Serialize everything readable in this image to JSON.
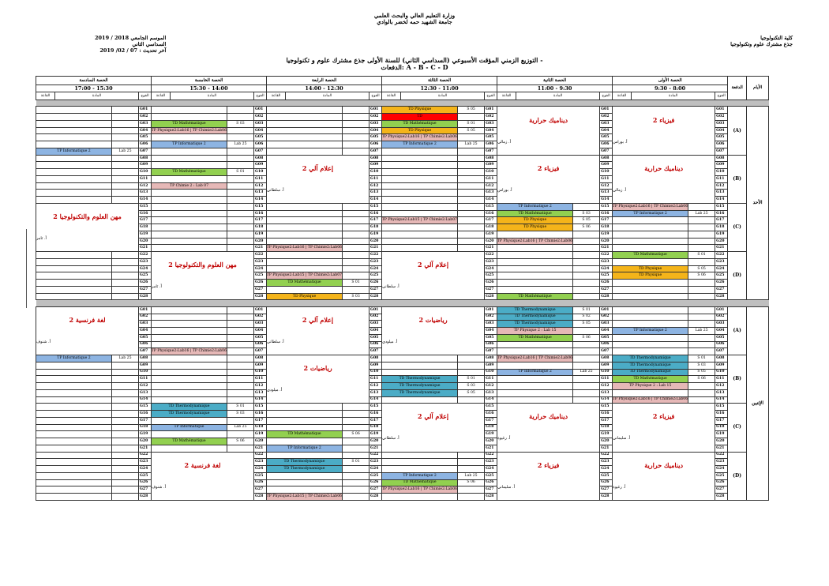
{
  "header": {
    "ministry": "وزارة التعليم العالي والبحث العلمي",
    "university": "جامعة الشهيد حمه لخضر بالوادي",
    "faculty": "كلية التكنولوجيا",
    "department": "جذع مشترك علوم وتكنولوجيا",
    "year": "الموسم الجامعي 2018 / 2019",
    "semester": "السداسي الثاني",
    "updated": "آخر تحديث : 07 / 02/ 2019",
    "title": "التوزيع الزمني المؤقت الأسبوعي (السداسي الثاني) للسنة الأولى جذع مشترك علوم و تكنولوجيا -",
    "batches": "الدفعات: A - B - C - D"
  },
  "labels": {
    "days_col": "الأيام",
    "batch_col": "الدفعة",
    "group": "الفوج",
    "subject": "المادة",
    "room": "القاعة",
    "amphi": "المدرج"
  },
  "periods": [
    {
      "name": "الحصة الأولى",
      "time": "8:00 - 9:30"
    },
    {
      "name": "الحصة الثانية",
      "time": "9:30 - 11:00"
    },
    {
      "name": "الحصة الثالثة",
      "time": "11:00 - 12:30"
    },
    {
      "name": "الحصة الرابعة",
      "time": "12:30 - 14:00"
    },
    {
      "name": "الحصة الخامسة",
      "time": "14:00 - 15:30"
    },
    {
      "name": "الحصة السادسة",
      "time": "15:30 - 17:00"
    }
  ],
  "days": [
    {
      "name": "الأحد",
      "batches": [
        "(A)",
        "(B)",
        "(C)",
        "(D)"
      ],
      "lectures": [
        {
          "p": 1,
          "r0": 0,
          "span": 7,
          "s": "فيزياء 2",
          "t": "أ. بوراس"
        },
        {
          "p": 2,
          "r0": 0,
          "span": 7,
          "s": "ديناميك حرارية",
          "t": "أ. زمالي"
        },
        {
          "p": 1,
          "r0": 7,
          "span": 7,
          "s": "ديناميك حرارية",
          "t": "أ. زمالي"
        },
        {
          "p": 2,
          "r0": 7,
          "span": 7,
          "s": "فيزياء 2",
          "t": "أ. بوراس"
        },
        {
          "p": 4,
          "r0": 7,
          "span": 7,
          "s": "إعلام آلي 2",
          "t": "أ. سلطاني"
        },
        {
          "p": 6,
          "r0": 14,
          "span": 7,
          "s": "مهن العلوم والتكنولوجيا 2",
          "t": "أ. ثامر"
        },
        {
          "p": 3,
          "r0": 21,
          "span": 7,
          "s": "إعلام آلي 2",
          "t": "أ. سلطاني"
        },
        {
          "p": 5,
          "r0": 21,
          "span": 7,
          "s": "مهن العلوم والتكنولوجيا 2",
          "t": "أ. ثامر"
        }
      ],
      "rows": [
        {
          "3": [
            "S 05",
            "TD Physique",
            "or"
          ]
        },
        {
          "3": [
            "",
            "TD",
            "rd"
          ]
        },
        {
          "3": [
            "S 01",
            "TD Mathématique",
            "gr"
          ],
          "5": [
            "S 03",
            "TD Mathématique",
            "gr"
          ]
        },
        {
          "3": [
            "S 05",
            "TD Physique",
            "or"
          ],
          "5": [
            "",
            "TP Physique2:Lab16 | TP Chimie2:Lab06",
            "pk"
          ]
        },
        {
          "3": [
            "",
            "TP Physique2:Lab16 | TP Chimie2:Lab06",
            "pk"
          ]
        },
        {
          "3": [
            "Lab 25",
            "TP Informatique 2",
            "bl"
          ],
          "5": [
            "Lab 25",
            "TP Informatique 2",
            "bl"
          ]
        },
        {
          "6": [
            "Lab 25",
            "TP Informatique 2",
            "bl"
          ]
        },
        {},
        {},
        {
          "5": [
            "S 01",
            "TD Mathématique",
            "gr"
          ]
        },
        {},
        {
          "5": [
            "",
            "TP Chimie 2 : Lab 07",
            "pk"
          ]
        },
        {},
        {},
        {
          "1": [
            "",
            "TP Physique2:Lab16 | TP Chimie2:Lab06",
            "pk"
          ],
          "2": [
            "",
            "TP Informatique 2",
            "bl"
          ]
        },
        {
          "1": [
            "Lab 25",
            "TP Informatique 2",
            "bl"
          ],
          "2": [
            "S 03",
            "TD Mathématique",
            "gr"
          ]
        },
        {
          "2": [
            "S 05",
            "TD Physique",
            "or"
          ],
          "3": [
            "",
            "TP Physique2:Lab15 | TP Chimie2:Lab07",
            "pk"
          ]
        },
        {
          "2": [
            "S 06",
            "TD Physique",
            "or"
          ]
        },
        {},
        {
          "2": [
            "",
            "TP Physique2:Lab16 | TP Chimie2:Lab06",
            "pk"
          ]
        },
        {
          "4": [
            "",
            "TP Physique2:Lab16 | TP Chimie2:Lab06",
            "pk"
          ]
        },
        {
          "1": [
            "S 01",
            "TD Mathématique",
            "gr"
          ]
        },
        {},
        {
          "1": [
            "S 05",
            "TD Physique",
            "or"
          ]
        },
        {
          "1": [
            "S 06",
            "TD Physique",
            "or"
          ],
          "4": [
            "",
            "TP Physique2:Lab15 | TP Chimie2:Lab07",
            "pk"
          ]
        },
        {
          "4": [
            "S 01",
            "TD Mathématique",
            "gr"
          ]
        },
        {},
        {
          "2": [
            "",
            "TD Mathématique",
            "gr"
          ],
          "4": [
            "S 03",
            "TD Physique",
            "or"
          ]
        }
      ]
    },
    {
      "name": "الإثنين",
      "batches": [
        "(A)",
        "(B)",
        "(C)",
        "(D)"
      ],
      "lectures": [
        {
          "p": 3,
          "r0": 0,
          "span": 7,
          "s": "رياضيات 2",
          "t": "أ. ميلودي"
        },
        {
          "p": 4,
          "r0": 0,
          "span": 7,
          "s": "إعلام آلي 2",
          "t": "أ. سلطاني"
        },
        {
          "p": 6,
          "r0": 0,
          "span": 7,
          "s": "لغة فرنسية 2",
          "t": "أ. شنوف"
        },
        {
          "p": 4,
          "r0": 7,
          "span": 7,
          "s": "رياضيات 2",
          "t": "أ. ميلودي"
        },
        {
          "p": 1,
          "r0": 14,
          "span": 7,
          "s": "فيزياء 2",
          "t": "أ. سليماني"
        },
        {
          "p": 2,
          "r0": 14,
          "span": 7,
          "s": "ديناميك حرارية",
          "t": "أ. رغيوة"
        },
        {
          "p": 3,
          "r0": 14,
          "span": 7,
          "s": "إعلام آلي 2",
          "t": "أ. سلطاني"
        },
        {
          "p": 1,
          "r0": 21,
          "span": 7,
          "s": "ديناميك حرارية",
          "t": "أ. رغيوة"
        },
        {
          "p": 2,
          "r0": 21,
          "span": 7,
          "s": "فيزياء 2",
          "t": "أ. سليماني"
        },
        {
          "p": 5,
          "r0": 21,
          "span": 7,
          "s": "لغة فرنسية 2",
          "t": "أ. شنوف"
        }
      ],
      "rows": [
        {
          "2": [
            "S 01",
            "TD Thermodynamique",
            "tq"
          ]
        },
        {
          "2": [
            "S 02",
            "TD Thermodynamique",
            "tq"
          ]
        },
        {
          "2": [
            "S 05",
            "TD Thermodynamique",
            "tq"
          ]
        },
        {
          "1": [
            "Lab 25",
            "TP Informatique 2",
            "bl"
          ],
          "2": [
            "",
            "TP Physique 2 : Lab 15",
            "pk"
          ]
        },
        {
          "2": [
            "S 06",
            "TD Mathématique",
            "gr"
          ]
        },
        {},
        {
          "5": [
            "",
            "TP Physique2:Lab16 | TP Chimie2:Lab06",
            "pk"
          ]
        },
        {
          "1": [
            "S 01",
            "TD Thermodynamique",
            "tq"
          ],
          "2": [
            "",
            "TP Physique2:Lab16 | TP Chimie2:Lab06",
            "pk"
          ],
          "6": [
            "Lab 25",
            "TP Informatique 2",
            "bl"
          ]
        },
        {
          "1": [
            "S 03",
            "TD Thermodynamique",
            "tq"
          ]
        },
        {
          "1": [
            "S 05",
            "TD Thermodynamique",
            "tq"
          ],
          "2": [
            "Lab 25",
            "TP Informatique 2",
            "bl"
          ]
        },
        {
          "1": [
            "S 06",
            "TD Mathématique",
            "gr"
          ],
          "3": [
            "S 01",
            "TD Thermodynamique",
            "tq"
          ]
        },
        {
          "1": [
            "",
            "TP Physique 2 : Lab 15",
            "pk"
          ],
          "3": [
            "S 03",
            "TD Thermodynamique",
            "tq"
          ]
        },
        {
          "3": [
            "S 05",
            "TD Thermodynamique",
            "tq"
          ]
        },
        {
          "1": [
            "",
            "TP Physique2:Lab16 | TP Chimie2:Lab06",
            "pk"
          ]
        },
        {
          "5": [
            "S 01",
            "TD Thermodynamique",
            "tq"
          ]
        },
        {
          "5": [
            "S 03",
            "TD Thermodynamique",
            "tq"
          ]
        },
        {},
        {
          "5": [
            "Lab 25",
            "TP Informatique",
            "bl"
          ]
        },
        {
          "4": [
            "S 06",
            "TD Mathématique",
            "gr"
          ]
        },
        {
          "5": [
            "S 06",
            "TD Mathématique",
            "gr"
          ]
        },
        {
          "4": [
            "",
            "TP Informatique 2",
            "bl"
          ]
        },
        {},
        {
          "4": [
            "S 01",
            "TD Thermodynamique",
            "tq"
          ]
        },
        {
          "4": [
            "",
            "TD Thermodynamique",
            "tq"
          ]
        },
        {
          "3": [
            "Lab 25",
            "TP Informatique 2",
            "bl"
          ]
        },
        {
          "3": [
            "S 06",
            "TD Mathématique",
            "gr"
          ]
        },
        {
          "3": [
            "",
            "TP Physique2:Lab16 | TP Chimie2:Lab06",
            "pk"
          ]
        },
        {
          "4": [
            "",
            "TP Physique2:Lab15 | TP Chimie2:Lab06",
            "pk"
          ]
        }
      ]
    }
  ]
}
